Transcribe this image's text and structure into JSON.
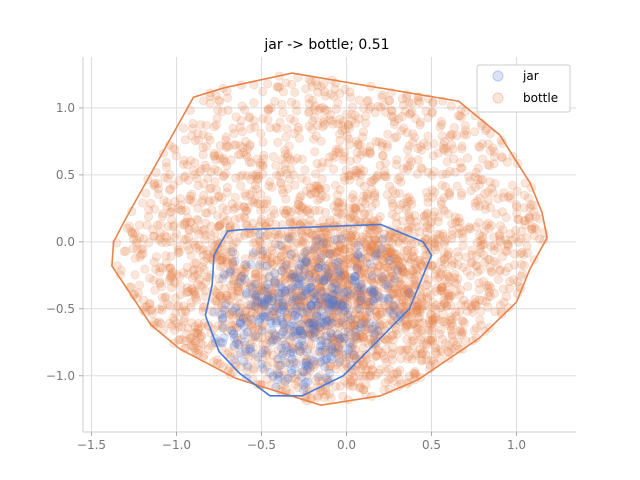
{
  "chart_data": {
    "type": "scatter",
    "title": "jar -> bottle; 0.51",
    "xlabel": "",
    "ylabel": "",
    "xlim": [
      -1.55,
      1.35
    ],
    "ylim": [
      -1.42,
      1.38
    ],
    "xticks": [
      -1.5,
      -1.0,
      -0.5,
      0.0,
      0.5,
      1.0
    ],
    "xtick_labels": [
      "−1.5",
      "−1.0",
      "−0.5",
      "0.0",
      "0.5",
      "1.0"
    ],
    "yticks": [
      -1.0,
      -0.5,
      0.0,
      0.5,
      1.0
    ],
    "ytick_labels": [
      "−1.0",
      "−0.5",
      "0.0",
      "0.5",
      "1.0"
    ],
    "grid": true,
    "legend_position": "top-right",
    "series": [
      {
        "name": "bottle",
        "color": "#E8834A",
        "alpha": 0.2,
        "n_points": 3000,
        "hull": [
          [
            -1.38,
            -0.18
          ],
          [
            -1.37,
            0.0
          ],
          [
            -1.3,
            0.17
          ],
          [
            -0.9,
            1.08
          ],
          [
            -0.72,
            1.15
          ],
          [
            -0.32,
            1.26
          ],
          [
            0.66,
            1.05
          ],
          [
            0.9,
            0.8
          ],
          [
            1.08,
            0.44
          ],
          [
            1.15,
            0.22
          ],
          [
            1.18,
            0.03
          ],
          [
            1.08,
            -0.2
          ],
          [
            1.0,
            -0.45
          ],
          [
            0.78,
            -0.72
          ],
          [
            0.42,
            -1.03
          ],
          [
            0.2,
            -1.15
          ],
          [
            -0.15,
            -1.22
          ],
          [
            -0.3,
            -1.16
          ],
          [
            -0.65,
            -1.02
          ],
          [
            -0.98,
            -0.8
          ],
          [
            -1.15,
            -0.62
          ]
        ]
      },
      {
        "name": "jar",
        "color": "#4A7AD8",
        "alpha": 0.2,
        "n_points": 420,
        "hull": [
          [
            -0.7,
            0.08
          ],
          [
            -0.63,
            0.09
          ],
          [
            0.2,
            0.13
          ],
          [
            0.45,
            0.0
          ],
          [
            0.5,
            -0.1
          ],
          [
            0.37,
            -0.5
          ],
          [
            -0.02,
            -1.0
          ],
          [
            -0.26,
            -1.15
          ],
          [
            -0.45,
            -1.15
          ],
          [
            -0.63,
            -0.98
          ],
          [
            -0.75,
            -0.82
          ],
          [
            -0.83,
            -0.55
          ],
          [
            -0.79,
            -0.32
          ],
          [
            -0.78,
            -0.1
          ]
        ]
      }
    ]
  }
}
